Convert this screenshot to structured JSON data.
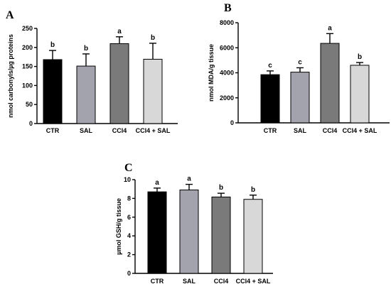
{
  "chart_data": [
    {
      "panel": "A",
      "type": "bar",
      "ylabel": "nmol carbonyls/µg proteins",
      "ylim": [
        0,
        250
      ],
      "yticks": [
        0,
        50,
        100,
        150,
        200,
        250
      ],
      "categories": [
        "CTR",
        "SAL",
        "CCl4",
        "CCl4 + SAL"
      ],
      "values": [
        168,
        151,
        210,
        169
      ],
      "errors": [
        24,
        32,
        18,
        42
      ],
      "letters": [
        "b",
        "b",
        "a",
        "b"
      ],
      "colors": [
        "#000000",
        "#a3a3ad",
        "#7a7a7a",
        "#d8d8d8"
      ]
    },
    {
      "panel": "B",
      "type": "bar",
      "ylabel": "nmol MDA/g tissue",
      "ylim": [
        0,
        8000
      ],
      "yticks": [
        0,
        2000,
        4000,
        6000,
        8000
      ],
      "categories": [
        "CTR",
        "SAL",
        "CCl4",
        "CCl4 + SAL"
      ],
      "values": [
        3850,
        4050,
        6350,
        4600
      ],
      "errors": [
        300,
        350,
        780,
        220
      ],
      "letters": [
        "c",
        "c",
        "a",
        "b"
      ],
      "colors": [
        "#000000",
        "#a3a3ad",
        "#7a7a7a",
        "#d8d8d8"
      ]
    },
    {
      "panel": "C",
      "type": "bar",
      "ylabel": "µmol GSH/g tissue",
      "ylim": [
        0,
        10
      ],
      "yticks": [
        0,
        2,
        4,
        6,
        8,
        10
      ],
      "categories": [
        "CTR",
        "SAL",
        "CCl4",
        "CCl4 + SAL"
      ],
      "values": [
        8.7,
        8.9,
        8.15,
        7.9
      ],
      "errors": [
        0.4,
        0.6,
        0.4,
        0.45
      ],
      "letters": [
        "a",
        "a",
        "b",
        "b"
      ],
      "colors": [
        "#000000",
        "#a3a3ad",
        "#7a7a7a",
        "#d8d8d8"
      ]
    }
  ]
}
